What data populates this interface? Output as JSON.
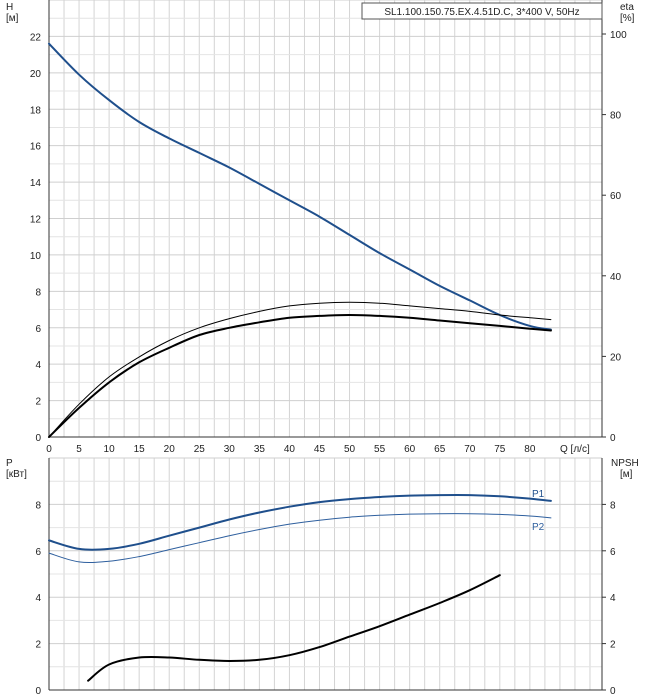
{
  "chart_data": [
    {
      "type": "line",
      "model_label": "SL1.100.150.75.EX.4.51D.C, 3*400 V, 50Hz",
      "xlabel": "Q [л/с]",
      "ylabel_left": "H",
      "ylabel_left_unit": "[м]",
      "ylabel_right": "eta",
      "ylabel_right_unit": "[%]",
      "xlim": [
        0,
        92
      ],
      "ylim_left": [
        0,
        24
      ],
      "ylim_right": [
        0,
        100
      ],
      "x_ticks": [
        0,
        5,
        10,
        15,
        20,
        25,
        30,
        35,
        40,
        45,
        50,
        55,
        60,
        65,
        70,
        75,
        80
      ],
      "y_ticks_left": [
        0,
        2,
        4,
        6,
        8,
        10,
        12,
        14,
        16,
        18,
        20,
        22
      ],
      "y_ticks_right": [
        0,
        20,
        40,
        60,
        80,
        100
      ],
      "grid": true,
      "series": [
        {
          "name": "",
          "axis": "left",
          "color": "#1f4f8c",
          "width": 2,
          "x": [
            0,
            5,
            10,
            15,
            20,
            25,
            30,
            35,
            40,
            45,
            50,
            55,
            60,
            65,
            70,
            75,
            80,
            83.5
          ],
          "y": [
            21.6,
            19.9,
            18.5,
            17.3,
            16.4,
            15.6,
            14.8,
            13.9,
            13.0,
            12.1,
            11.1,
            10.1,
            9.2,
            8.3,
            7.5,
            6.7,
            6.1,
            5.9
          ]
        },
        {
          "name": "",
          "axis": "left",
          "color": "#000000",
          "width": 1,
          "x": [
            0,
            5,
            10,
            15,
            20,
            25,
            30,
            35,
            40,
            45,
            50,
            55,
            60,
            65,
            70,
            75,
            80,
            83.5
          ],
          "y": [
            0,
            1.8,
            3.3,
            4.4,
            5.3,
            6.0,
            6.5,
            6.9,
            7.2,
            7.35,
            7.4,
            7.35,
            7.2,
            7.05,
            6.9,
            6.7,
            6.55,
            6.45
          ]
        },
        {
          "name": "",
          "axis": "left",
          "color": "#000000",
          "width": 2,
          "x": [
            0,
            5,
            10,
            15,
            20,
            25,
            30,
            35,
            40,
            45,
            50,
            55,
            60,
            65,
            70,
            75,
            80,
            83.5
          ],
          "y": [
            0,
            1.6,
            3.0,
            4.1,
            4.9,
            5.6,
            6.0,
            6.3,
            6.55,
            6.65,
            6.7,
            6.65,
            6.55,
            6.4,
            6.25,
            6.1,
            5.95,
            5.85
          ]
        }
      ]
    },
    {
      "type": "line",
      "xlim": [
        0,
        92
      ],
      "ylabel_left": "P",
      "ylabel_left_unit": "[кВт]",
      "ylabel_right": "NPSH",
      "ylabel_right_unit": "[м]",
      "ylim_left": [
        0,
        10
      ],
      "ylim_right": [
        0,
        10
      ],
      "y_ticks_left": [
        0,
        2,
        4,
        6,
        8
      ],
      "y_ticks_right": [
        0,
        2,
        4,
        6,
        8
      ],
      "grid": true,
      "series": [
        {
          "name": "P1",
          "axis": "left",
          "color": "#1f4f8c",
          "width": 2,
          "x": [
            0,
            5,
            10,
            15,
            20,
            25,
            30,
            35,
            40,
            45,
            50,
            55,
            60,
            65,
            70,
            75,
            80,
            83.5
          ],
          "y": [
            6.45,
            6.08,
            6.08,
            6.3,
            6.65,
            7.0,
            7.35,
            7.65,
            7.9,
            8.1,
            8.23,
            8.32,
            8.38,
            8.4,
            8.4,
            8.35,
            8.25,
            8.15
          ]
        },
        {
          "name": "P2",
          "axis": "left",
          "color": "#2e5f9e",
          "width": 1,
          "x": [
            0,
            5,
            10,
            15,
            20,
            25,
            30,
            35,
            40,
            45,
            50,
            55,
            60,
            65,
            70,
            75,
            80,
            83.5
          ],
          "y": [
            5.9,
            5.52,
            5.55,
            5.75,
            6.05,
            6.35,
            6.65,
            6.92,
            7.15,
            7.32,
            7.45,
            7.53,
            7.58,
            7.6,
            7.6,
            7.57,
            7.5,
            7.42
          ]
        },
        {
          "name": "",
          "axis": "right",
          "color": "#000000",
          "width": 2,
          "x": [
            6.5,
            10,
            15,
            20,
            25,
            30,
            35,
            40,
            45,
            50,
            55,
            60,
            65,
            70,
            75
          ],
          "y": [
            0.4,
            1.1,
            1.4,
            1.4,
            1.3,
            1.25,
            1.3,
            1.5,
            1.85,
            2.3,
            2.75,
            3.25,
            3.75,
            4.3,
            4.95
          ]
        }
      ]
    }
  ]
}
